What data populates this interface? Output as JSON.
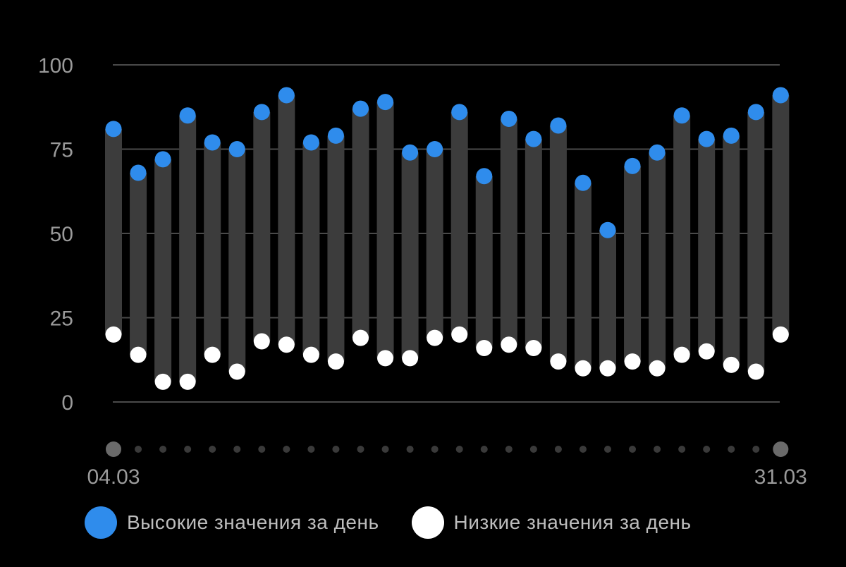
{
  "chart_data": {
    "type": "range-bar",
    "ylim": [
      0,
      100
    ],
    "yticks": [
      0,
      25,
      50,
      75,
      100
    ],
    "x_start_label": "04.03",
    "x_end_label": "31.03",
    "grid": true,
    "categories_count": 28,
    "series": [
      {
        "name": "Высокие значения за день",
        "color": "#2f8cec",
        "values": [
          81,
          68,
          72,
          85,
          77,
          75,
          86,
          91,
          77,
          79,
          87,
          89,
          74,
          75,
          86,
          67,
          84,
          78,
          82,
          65,
          51,
          70,
          74,
          85,
          78,
          79,
          86,
          91
        ]
      },
      {
        "name": "Низкие значения за день",
        "color": "#ffffff",
        "values": [
          20,
          14,
          6,
          6,
          14,
          9,
          18,
          17,
          14,
          12,
          19,
          13,
          13,
          19,
          20,
          16,
          17,
          16,
          12,
          10,
          10,
          12,
          10,
          14,
          15,
          11,
          9,
          20
        ]
      }
    ]
  },
  "colors": {
    "background": "#000000",
    "bar": "#3c3c3c",
    "grid": "#4a4a4a",
    "axis_text": "#9a9a9a",
    "x_dot": "#3a3a3a",
    "x_dot_end": "#6a6a6a"
  }
}
